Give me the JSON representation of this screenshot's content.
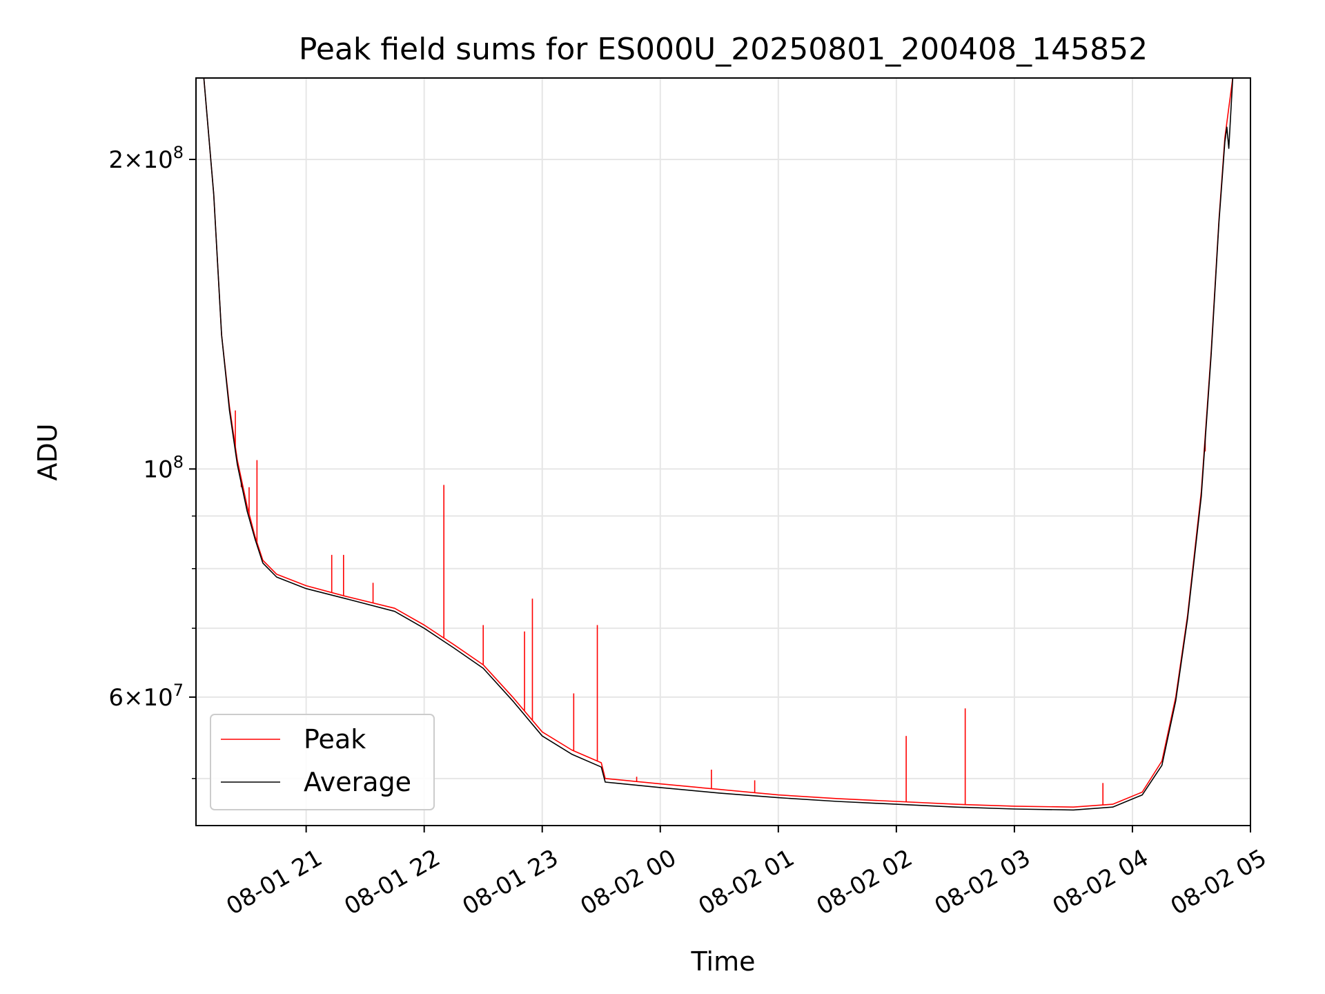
{
  "chart_data": {
    "type": "line",
    "title": "Peak field sums for ES000U_20250801_200408_145852",
    "xlabel": "Time",
    "ylabel": "ADU",
    "y_scale": "log",
    "ylim": [
      45000000,
      240000000
    ],
    "xlim": [
      "08-01 20:04",
      "08-02 05:00"
    ],
    "grid": true,
    "legend_position": "lower-left",
    "x_ticks": [
      "08-01 21",
      "08-01 22",
      "08-01 23",
      "08-02 00",
      "08-02 01",
      "08-02 02",
      "08-02 03",
      "08-02 04",
      "08-02 05"
    ],
    "y_ticks": [
      {
        "value": 200000000,
        "mantissa": "2",
        "exponent": "8"
      },
      {
        "value": 100000000,
        "mantissa": "",
        "exponent": "8"
      },
      {
        "value": 60000000,
        "mantissa": "6",
        "exponent": "7"
      }
    ],
    "y_minor_ticks": [
      50000000,
      70000000,
      80000000,
      90000000
    ],
    "series": [
      {
        "name": "Peak",
        "color": "#ff0000",
        "points": [
          [
            "08-01 20:08",
            240000000
          ],
          [
            "08-01 20:13",
            185000000
          ],
          [
            "08-01 20:17",
            135000000
          ],
          [
            "08-01 20:21",
            115000000
          ],
          [
            "08-01 20:25",
            102000000
          ],
          [
            "08-01 20:30",
            92000000
          ],
          [
            "08-01 20:34",
            86000000
          ],
          [
            "08-01 20:38",
            81500000
          ],
          [
            "08-01 20:45",
            79000000
          ],
          [
            "08-01 21:00",
            77000000
          ],
          [
            "08-01 21:20",
            75200000
          ],
          [
            "08-01 21:45",
            73200000
          ],
          [
            "08-01 22:00",
            70500000
          ],
          [
            "08-01 22:15",
            67500000
          ],
          [
            "08-01 22:30",
            64500000
          ],
          [
            "08-01 22:45",
            60000000
          ],
          [
            "08-01 23:00",
            55500000
          ],
          [
            "08-01 23:15",
            53300000
          ],
          [
            "08-01 23:30",
            51800000
          ],
          [
            "08-01 23:32",
            50000000
          ],
          [
            "08-02 00:00",
            49400000
          ],
          [
            "08-02 00:30",
            48800000
          ],
          [
            "08-02 01:00",
            48200000
          ],
          [
            "08-02 01:30",
            47800000
          ],
          [
            "08-02 02:00",
            47500000
          ],
          [
            "08-02 02:30",
            47200000
          ],
          [
            "08-02 03:00",
            47000000
          ],
          [
            "08-02 03:30",
            46900000
          ],
          [
            "08-02 03:50",
            47200000
          ],
          [
            "08-02 04:05",
            48500000
          ],
          [
            "08-02 04:15",
            52000000
          ],
          [
            "08-02 04:22",
            60000000
          ],
          [
            "08-02 04:28",
            72000000
          ],
          [
            "08-02 04:35",
            95000000
          ],
          [
            "08-02 04:40",
            130000000
          ],
          [
            "08-02 04:44",
            175000000
          ],
          [
            "08-02 04:47",
            210000000
          ],
          [
            "08-02 04:51",
            240000000
          ]
        ],
        "spikes": [
          [
            "08-01 20:24",
            114000000
          ],
          [
            "08-01 20:27",
            96000000
          ],
          [
            "08-01 20:31",
            96000000
          ],
          [
            "08-01 20:35",
            102000000
          ],
          [
            "08-01 21:13",
            82500000
          ],
          [
            "08-01 21:19",
            82500000
          ],
          [
            "08-01 21:34",
            77500000
          ],
          [
            "08-01 22:10",
            96500000
          ],
          [
            "08-01 22:30",
            70500000
          ],
          [
            "08-01 22:51",
            69500000
          ],
          [
            "08-01 22:55",
            74800000
          ],
          [
            "08-01 23:16",
            60500000
          ],
          [
            "08-01 23:28",
            70500000
          ],
          [
            "08-01 23:48",
            50200000
          ],
          [
            "08-02 00:26",
            51000000
          ],
          [
            "08-02 00:48",
            49800000
          ],
          [
            "08-02 02:05",
            55000000
          ],
          [
            "08-02 02:35",
            58500000
          ],
          [
            "08-02 03:45",
            49500000
          ],
          [
            "08-02 04:37",
            104000000
          ]
        ]
      },
      {
        "name": "Average",
        "color": "#000000",
        "points": [
          [
            "08-01 20:08",
            240000000
          ],
          [
            "08-01 20:13",
            185000000
          ],
          [
            "08-01 20:17",
            135000000
          ],
          [
            "08-01 20:21",
            114000000
          ],
          [
            "08-01 20:25",
            101000000
          ],
          [
            "08-01 20:30",
            91000000
          ],
          [
            "08-01 20:34",
            85500000
          ],
          [
            "08-01 20:38",
            81000000
          ],
          [
            "08-01 20:45",
            78500000
          ],
          [
            "08-01 21:00",
            76500000
          ],
          [
            "08-01 21:20",
            74800000
          ],
          [
            "08-01 21:45",
            72700000
          ],
          [
            "08-01 22:00",
            70000000
          ],
          [
            "08-01 22:15",
            67000000
          ],
          [
            "08-01 22:30",
            64000000
          ],
          [
            "08-01 22:45",
            59500000
          ],
          [
            "08-01 23:00",
            55000000
          ],
          [
            "08-01 23:15",
            52800000
          ],
          [
            "08-01 23:30",
            51300000
          ],
          [
            "08-01 23:32",
            49600000
          ],
          [
            "08-02 00:00",
            49000000
          ],
          [
            "08-02 00:30",
            48400000
          ],
          [
            "08-02 01:00",
            47900000
          ],
          [
            "08-02 01:30",
            47500000
          ],
          [
            "08-02 02:00",
            47200000
          ],
          [
            "08-02 02:30",
            46900000
          ],
          [
            "08-02 03:00",
            46700000
          ],
          [
            "08-02 03:30",
            46600000
          ],
          [
            "08-02 03:50",
            46900000
          ],
          [
            "08-02 04:05",
            48200000
          ],
          [
            "08-02 04:15",
            51500000
          ],
          [
            "08-02 04:22",
            59500000
          ],
          [
            "08-02 04:28",
            71500000
          ],
          [
            "08-02 04:35",
            94000000
          ],
          [
            "08-02 04:40",
            129000000
          ],
          [
            "08-02 04:44",
            174000000
          ],
          [
            "08-02 04:47",
            208000000
          ],
          [
            "08-02 04:48",
            215000000
          ],
          [
            "08-02 04:49",
            205000000
          ],
          [
            "08-02 04:51",
            240000000
          ]
        ]
      }
    ]
  }
}
